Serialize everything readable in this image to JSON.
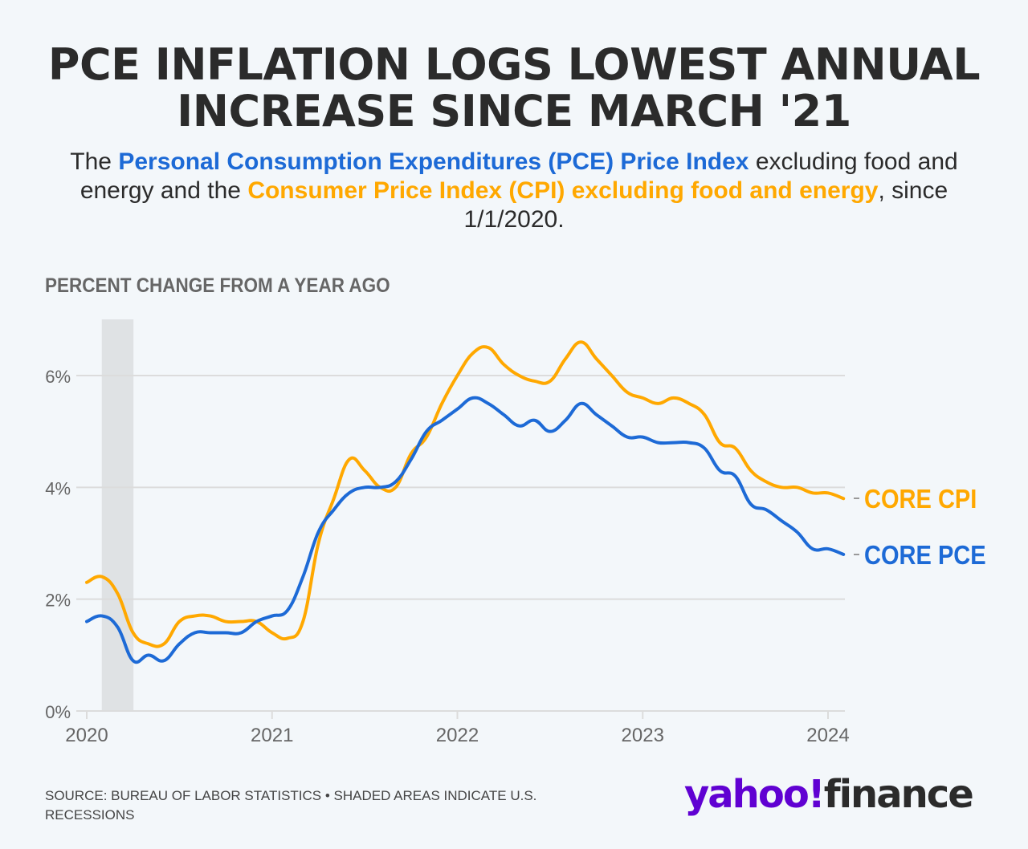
{
  "title": {
    "line1": "PCE INFLATION LOGS LOWEST ANNUAL",
    "line2": "INCREASE SINCE MARCH '21"
  },
  "subtitle": {
    "p1": "The ",
    "pce_name": "Personal Consumption Expenditures (PCE) Price Index",
    "p2": " excluding food and energy and the ",
    "cpi_name": "Consumer Price Index (CPI) excluding food and energy",
    "p3": ", since 1/1/2020."
  },
  "footer": {
    "source": "SOURCE: BUREAU OF LABOR STATISTICS • SHADED AREAS INDICATE U.S. RECESSIONS"
  },
  "logo": {
    "yahoo": "yahoo!",
    "finance": "finance"
  },
  "chart_data": {
    "type": "line",
    "title": "PCE INFLATION LOGS LOWEST ANNUAL INCREASE SINCE MARCH '21",
    "ylabel": "PERCENT CHANGE FROM A YEAR AGO",
    "xlabel": "",
    "x_start": "2020-01",
    "x_frequency": "monthly",
    "xlim_months": [
      0,
      49
    ],
    "ylim": [
      0,
      7
    ],
    "yticks": [
      0,
      2,
      4,
      6
    ],
    "ytick_labels": [
      "0%",
      "2%",
      "4%",
      "6%"
    ],
    "xticks_months": [
      0,
      12,
      24,
      36,
      48
    ],
    "xtick_labels": [
      "2020",
      "2021",
      "2022",
      "2023",
      "2024"
    ],
    "grid": true,
    "recession_shade_months": [
      1,
      3
    ],
    "series": [
      {
        "name": "CORE CPI",
        "color": "#ffa800",
        "values": [
          2.3,
          2.4,
          2.1,
          1.4,
          1.2,
          1.2,
          1.6,
          1.7,
          1.7,
          1.6,
          1.6,
          1.6,
          1.4,
          1.3,
          1.6,
          3.0,
          3.8,
          4.5,
          4.3,
          4.0,
          4.0,
          4.6,
          4.9,
          5.5,
          6.0,
          6.4,
          6.5,
          6.2,
          6.0,
          5.9,
          5.9,
          6.3,
          6.6,
          6.3,
          6.0,
          5.7,
          5.6,
          5.5,
          5.6,
          5.5,
          5.3,
          4.8,
          4.7,
          4.3,
          4.1,
          4.0,
          4.0,
          3.9,
          3.9,
          3.8
        ]
      },
      {
        "name": "CORE PCE",
        "color": "#1d6ad6",
        "values": [
          1.6,
          1.7,
          1.5,
          0.9,
          1.0,
          0.9,
          1.2,
          1.4,
          1.4,
          1.4,
          1.4,
          1.6,
          1.7,
          1.8,
          2.4,
          3.2,
          3.6,
          3.9,
          4.0,
          4.0,
          4.1,
          4.5,
          5.0,
          5.2,
          5.4,
          5.6,
          5.5,
          5.3,
          5.1,
          5.2,
          5.0,
          5.2,
          5.5,
          5.3,
          5.1,
          4.9,
          4.9,
          4.8,
          4.8,
          4.8,
          4.7,
          4.3,
          4.2,
          3.7,
          3.6,
          3.4,
          3.2,
          2.9,
          2.9,
          2.8
        ]
      }
    ],
    "legend_placement": "right-end-labels"
  }
}
